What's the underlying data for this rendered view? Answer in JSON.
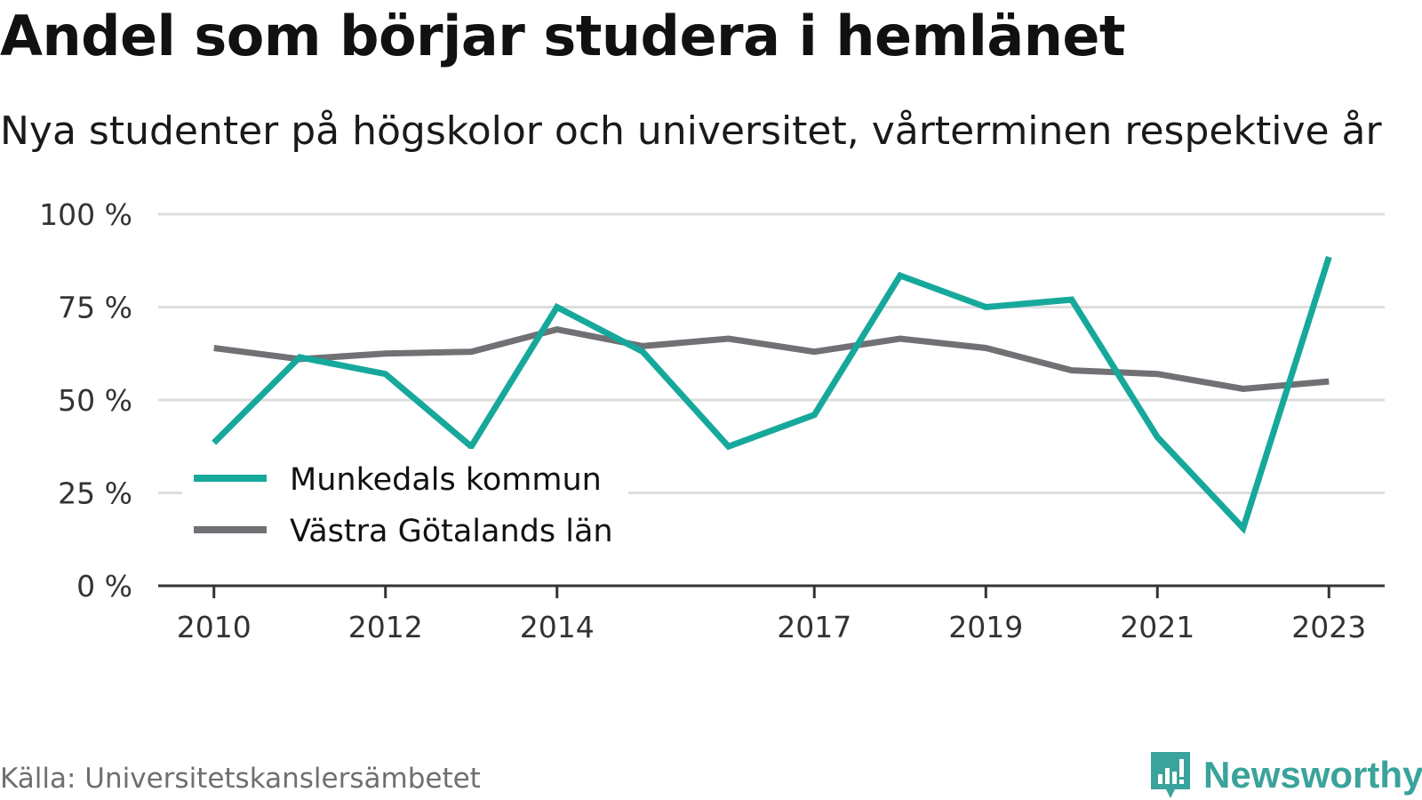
{
  "header": {
    "title": "Andel som börjar studera i hemlänet",
    "subtitle": "Nya studenter på högskolor och universitet, vårterminen respektive år"
  },
  "footer": {
    "source": "Källa: Universitetskanslersämbetet",
    "brand": "Newsworthy"
  },
  "icons": {
    "brand_logo": "newsworthy-logo-icon"
  },
  "colors": {
    "munkedal": "#17a89c",
    "vastra_gotaland": "#707075",
    "grid": "#dddddd",
    "axis": "#333333",
    "brand": "#3aa39b"
  },
  "chart_data": {
    "type": "line",
    "title": "Andel som börjar studera i hemlänet",
    "subtitle": "Nya studenter på högskolor och universitet, vårterminen respektive år",
    "x": [
      2010,
      2011,
      2012,
      2013,
      2014,
      2015,
      2016,
      2017,
      2018,
      2019,
      2020,
      2021,
      2022,
      2023
    ],
    "x_tick_labels": [
      "2010",
      "2012",
      "2014",
      "2017",
      "2019",
      "2021",
      "2023"
    ],
    "x_ticks": [
      2010,
      2012,
      2014,
      2017,
      2019,
      2021,
      2023
    ],
    "y_tick_labels": [
      "0 %",
      "25 %",
      "50 %",
      "75 %",
      "100 %"
    ],
    "y_ticks": [
      0,
      25,
      50,
      75,
      100
    ],
    "ylim": [
      0,
      100
    ],
    "xlim": [
      2009.35,
      2023.65
    ],
    "grid": true,
    "legend_position": "lower-left",
    "series": [
      {
        "name": "Munkedals kommun",
        "color": "#17a89c",
        "values": [
          38.5,
          61.5,
          57,
          37.5,
          75,
          63,
          37.5,
          46,
          83.5,
          75,
          77,
          40,
          15.5,
          88.5
        ]
      },
      {
        "name": "Västra Götalands län",
        "color": "#707075",
        "values": [
          64,
          61,
          62.5,
          63,
          69,
          64.5,
          66.5,
          63,
          66.5,
          64,
          58,
          57,
          53,
          55
        ]
      }
    ]
  }
}
